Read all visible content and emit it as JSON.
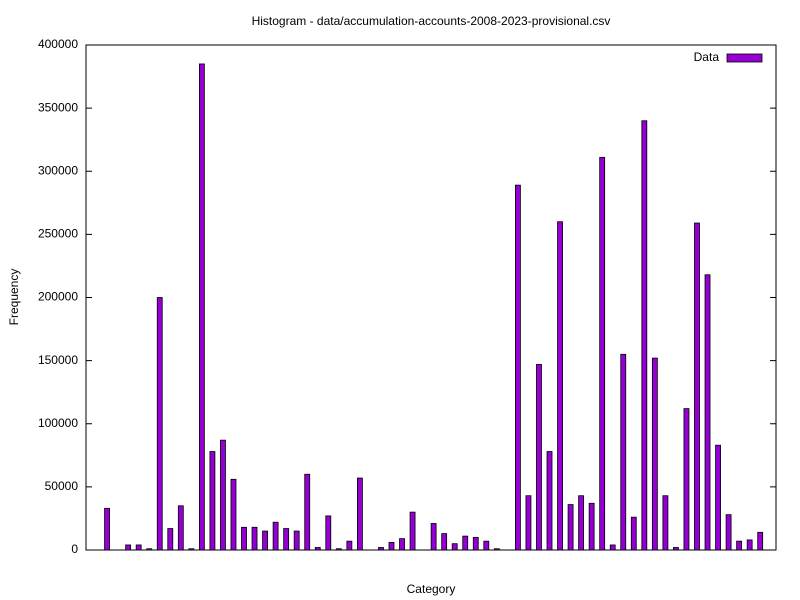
{
  "chart_data": {
    "type": "bar",
    "title": "Histogram - data/accumulation-accounts-2008-2023-provisional.csv",
    "x_label": "Category",
    "y_label": "Frequency",
    "categories": [
      null,
      null,
      null,
      null,
      null,
      null,
      null,
      null,
      null,
      null,
      null,
      null,
      null,
      null,
      null,
      null,
      null,
      null,
      null,
      null,
      null,
      null,
      null,
      null,
      null,
      null,
      null,
      null,
      null,
      null,
      null,
      null,
      null,
      null,
      null,
      null,
      null,
      null,
      null,
      null,
      null,
      null,
      null,
      null,
      null,
      null,
      null,
      null,
      null,
      null,
      null,
      null,
      null,
      null,
      null,
      null,
      null,
      null,
      null,
      null,
      null,
      null,
      null
    ],
    "series": [
      {
        "name": "Data",
        "color": "#9400d3",
        "values": [
          33000,
          0,
          4000,
          4000,
          1000,
          200000,
          17000,
          35000,
          1000,
          385000,
          78000,
          87000,
          56000,
          18000,
          18000,
          15000,
          22000,
          17000,
          15000,
          60000,
          2000,
          27000,
          1000,
          7000,
          57000,
          0,
          2000,
          6000,
          9000,
          30000,
          0,
          21000,
          13000,
          5000,
          11000,
          10000,
          7000,
          1000,
          0,
          289000,
          43000,
          147000,
          78000,
          260000,
          36000,
          43000,
          37000,
          311000,
          4000,
          155000,
          26000,
          340000,
          152000,
          43000,
          2000,
          112000,
          259000,
          218000,
          83000,
          28000,
          7000,
          8000,
          14000
        ]
      }
    ],
    "ylim": [
      0,
      400000
    ],
    "yticks": [
      0,
      50000,
      100000,
      150000,
      200000,
      250000,
      300000,
      350000,
      400000
    ],
    "legend": "top-right"
  }
}
